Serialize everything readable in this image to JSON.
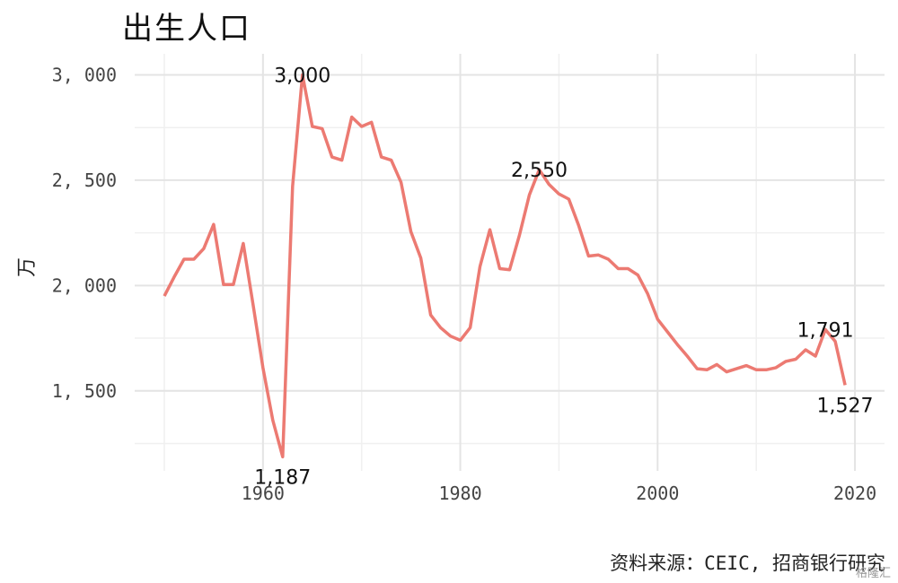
{
  "chart_data": {
    "type": "line",
    "title": "出生人口",
    "ylabel": "万",
    "xlabel": "",
    "source": "资料来源：CEIC, 招商银行研究",
    "watermark": "格隆汇",
    "x_range": [
      1947,
      2023
    ],
    "ylim": [
      1120,
      3100
    ],
    "x_ticks": [
      1960,
      1980,
      2000,
      2020
    ],
    "y_ticks": [
      1500,
      2000,
      2500,
      3000
    ],
    "y_tick_labels": [
      "1, 500",
      "2, 000",
      "2, 500",
      "3, 000"
    ],
    "x_tick_labels": [
      "1960",
      "1980",
      "2000",
      "2020"
    ],
    "grid": true,
    "line_color": "#ec7a72",
    "series": [
      {
        "x": [
          1950,
          1951,
          1952,
          1953,
          1954,
          1955,
          1956,
          1957,
          1958,
          1959,
          1960,
          1961,
          1962,
          1963,
          1964,
          1965,
          1966,
          1967,
          1968,
          1969,
          1970,
          1971,
          1972,
          1973,
          1974,
          1975,
          1976,
          1977,
          1978,
          1979,
          1980,
          1981,
          1982,
          1983,
          1984,
          1985,
          1986,
          1987,
          1988,
          1989,
          1990,
          1991,
          1992,
          1993,
          1994,
          1995,
          1996,
          1997,
          1998,
          1999,
          2000,
          2001,
          2002,
          2003,
          2004,
          2005,
          2006,
          2007,
          2008,
          2009,
          2010,
          2011,
          2012,
          2013,
          2014,
          2015,
          2016,
          2017,
          2018,
          2019
        ],
        "y": [
          1950,
          2040,
          2125,
          2125,
          2175,
          2290,
          2005,
          2005,
          2200,
          1910,
          1610,
          1360,
          1187,
          2470,
          3000,
          2755,
          2745,
          2610,
          2595,
          2800,
          2755,
          2775,
          2610,
          2595,
          2490,
          2255,
          2130,
          1860,
          1800,
          1760,
          1740,
          1800,
          2090,
          2265,
          2080,
          2075,
          2240,
          2430,
          2550,
          2480,
          2435,
          2410,
          2285,
          2140,
          2145,
          2125,
          2080,
          2080,
          2050,
          1960,
          1840,
          1780,
          1720,
          1665,
          1605,
          1600,
          1625,
          1590,
          1605,
          1620,
          1600,
          1600,
          1610,
          1640,
          1650,
          1695,
          1665,
          1791,
          1735,
          1527
        ]
      }
    ],
    "annotations": [
      {
        "x": 1962,
        "y": 1187,
        "label": "1,187",
        "pos": "below"
      },
      {
        "x": 1964,
        "y": 3000,
        "label": "3,000",
        "pos": "on"
      },
      {
        "x": 1988,
        "y": 2550,
        "label": "2,550",
        "pos": "on"
      },
      {
        "x": 2017,
        "y": 1791,
        "label": "1,791",
        "pos": "on"
      },
      {
        "x": 2019,
        "y": 1527,
        "label": "1,527",
        "pos": "below"
      }
    ]
  }
}
